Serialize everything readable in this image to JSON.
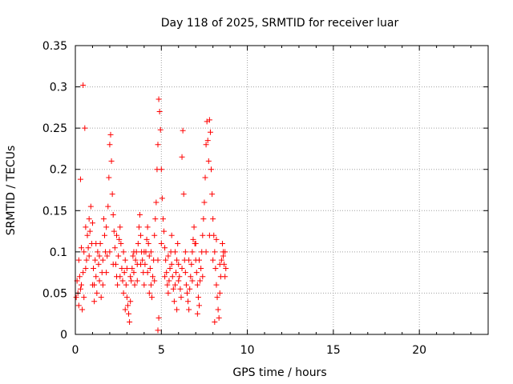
{
  "chart_data": {
    "type": "scatter",
    "title": "Day 118 of 2025, SRMTID for receiver luar",
    "xlabel": "GPS time / hours",
    "ylabel": "SRMTID / TECUs",
    "xlim": [
      0,
      24
    ],
    "ylim": [
      0,
      0.35
    ],
    "xticks": [
      0,
      5,
      10,
      15,
      20
    ],
    "xtick_labels": [
      "0",
      "5",
      "10",
      "15",
      "20"
    ],
    "yticks": [
      0,
      0.05,
      0.1,
      0.15,
      0.2,
      0.25,
      0.3,
      0.35
    ],
    "ytick_labels": [
      "0",
      "0.05",
      "0.1",
      "0.15",
      "0.2",
      "0.25",
      "0.3",
      "0.35"
    ],
    "grid": true,
    "marker": "plus",
    "color": "#ff0000",
    "series": [
      {
        "points": [
          [
            0.05,
            0.045
          ],
          [
            0.1,
            0.065
          ],
          [
            0.15,
            0.05
          ],
          [
            0.2,
            0.035
          ],
          [
            0.25,
            0.07
          ],
          [
            0.3,
            0.055
          ],
          [
            0.35,
            0.06
          ],
          [
            0.4,
            0.03
          ],
          [
            0.45,
            0.075
          ],
          [
            0.5,
            0.045
          ],
          [
            0.3,
            0.188
          ],
          [
            0.45,
            0.302
          ],
          [
            0.55,
            0.25
          ],
          [
            0.5,
            0.1
          ],
          [
            0.6,
            0.13
          ],
          [
            0.65,
            0.09
          ],
          [
            0.7,
            0.12
          ],
          [
            0.75,
            0.105
          ],
          [
            0.8,
            0.14
          ],
          [
            0.85,
            0.125
          ],
          [
            0.9,
            0.155
          ],
          [
            0.95,
            0.11
          ],
          [
            1.0,
            0.135
          ],
          [
            1.05,
            0.08
          ],
          [
            1.1,
            0.06
          ],
          [
            1.15,
            0.09
          ],
          [
            1.2,
            0.07
          ],
          [
            1.25,
            0.05
          ],
          [
            1.3,
            0.1
          ],
          [
            1.35,
            0.085
          ],
          [
            1.4,
            0.065
          ],
          [
            1.45,
            0.11
          ],
          [
            1.5,
            0.045
          ],
          [
            1.55,
            0.075
          ],
          [
            1.6,
            0.09
          ],
          [
            1.65,
            0.14
          ],
          [
            1.7,
            0.12
          ],
          [
            1.75,
            0.1
          ],
          [
            1.8,
            0.13
          ],
          [
            1.85,
            0.095
          ],
          [
            1.9,
            0.155
          ],
          [
            1.95,
            0.19
          ],
          [
            2.0,
            0.23
          ],
          [
            2.05,
            0.242
          ],
          [
            2.1,
            0.21
          ],
          [
            2.15,
            0.17
          ],
          [
            2.2,
            0.145
          ],
          [
            2.25,
            0.125
          ],
          [
            2.3,
            0.105
          ],
          [
            2.35,
            0.085
          ],
          [
            2.4,
            0.07
          ],
          [
            2.45,
            0.06
          ],
          [
            2.5,
            0.095
          ],
          [
            2.55,
            0.115
          ],
          [
            2.6,
            0.13
          ],
          [
            2.65,
            0.11
          ],
          [
            2.7,
            0.08
          ],
          [
            2.75,
            0.065
          ],
          [
            2.8,
            0.05
          ],
          [
            2.85,
            0.075
          ],
          [
            2.9,
            0.09
          ],
          [
            2.95,
            0.06
          ],
          [
            3.0,
            0.045
          ],
          [
            3.05,
            0.035
          ],
          [
            3.1,
            0.025
          ],
          [
            3.15,
            0.015
          ],
          [
            3.2,
            0.04
          ],
          [
            3.25,
            0.065
          ],
          [
            3.3,
            0.08
          ],
          [
            3.35,
            0.095
          ],
          [
            3.4,
            0.075
          ],
          [
            3.45,
            0.06
          ],
          [
            3.5,
            0.09
          ],
          [
            3.55,
            0.1
          ],
          [
            3.6,
            0.085
          ],
          [
            3.65,
            0.11
          ],
          [
            3.7,
            0.13
          ],
          [
            3.75,
            0.145
          ],
          [
            3.8,
            0.12
          ],
          [
            3.85,
            0.1
          ],
          [
            3.9,
            0.09
          ],
          [
            3.95,
            0.075
          ],
          [
            4.0,
            0.06
          ],
          [
            4.05,
            0.085
          ],
          [
            4.1,
            0.1
          ],
          [
            4.15,
            0.115
          ],
          [
            4.2,
            0.13
          ],
          [
            4.25,
            0.11
          ],
          [
            4.3,
            0.095
          ],
          [
            4.35,
            0.08
          ],
          [
            4.4,
            0.06
          ],
          [
            4.45,
            0.045
          ],
          [
            4.5,
            0.07
          ],
          [
            4.55,
            0.09
          ],
          [
            4.6,
            0.12
          ],
          [
            4.65,
            0.14
          ],
          [
            4.7,
            0.16
          ],
          [
            4.75,
            0.2
          ],
          [
            4.8,
            0.23
          ],
          [
            4.85,
            0.285
          ],
          [
            4.9,
            0.27
          ],
          [
            4.95,
            0.248
          ],
          [
            4.8,
            0.005
          ],
          [
            4.85,
            0.02
          ],
          [
            5.0,
            0.2
          ],
          [
            5.05,
            0.165
          ],
          [
            5.1,
            0.14
          ],
          [
            5.15,
            0.125
          ],
          [
            5.2,
            0.105
          ],
          [
            5.25,
            0.09
          ],
          [
            5.3,
            0.075
          ],
          [
            5.35,
            0.06
          ],
          [
            5.4,
            0.05
          ],
          [
            5.45,
            0.065
          ],
          [
            5.5,
            0.08
          ],
          [
            5.55,
            0.1
          ],
          [
            5.6,
            0.085
          ],
          [
            5.65,
            0.07
          ],
          [
            5.7,
            0.055
          ],
          [
            5.75,
            0.04
          ],
          [
            5.8,
            0.06
          ],
          [
            5.85,
            0.075
          ],
          [
            5.9,
            0.09
          ],
          [
            5.95,
            0.11
          ],
          [
            6.0,
            0.085
          ],
          [
            6.05,
            0.07
          ],
          [
            6.1,
            0.055
          ],
          [
            6.15,
            0.045
          ],
          [
            6.2,
            0.215
          ],
          [
            6.25,
            0.247
          ],
          [
            6.3,
            0.17
          ],
          [
            6.35,
            0.09
          ],
          [
            6.4,
            0.075
          ],
          [
            6.45,
            0.06
          ],
          [
            6.5,
            0.05
          ],
          [
            6.55,
            0.04
          ],
          [
            6.6,
            0.03
          ],
          [
            6.65,
            0.055
          ],
          [
            6.7,
            0.07
          ],
          [
            6.75,
            0.085
          ],
          [
            6.8,
            0.1
          ],
          [
            6.85,
            0.115
          ],
          [
            6.9,
            0.13
          ],
          [
            6.95,
            0.11
          ],
          [
            7.0,
            0.09
          ],
          [
            7.05,
            0.075
          ],
          [
            7.1,
            0.06
          ],
          [
            7.15,
            0.045
          ],
          [
            7.2,
            0.035
          ],
          [
            7.25,
            0.065
          ],
          [
            7.3,
            0.08
          ],
          [
            7.35,
            0.1
          ],
          [
            7.4,
            0.12
          ],
          [
            7.45,
            0.14
          ],
          [
            7.5,
            0.16
          ],
          [
            7.55,
            0.19
          ],
          [
            7.6,
            0.23
          ],
          [
            7.65,
            0.258
          ],
          [
            7.7,
            0.235
          ],
          [
            7.75,
            0.21
          ],
          [
            7.8,
            0.26
          ],
          [
            7.85,
            0.245
          ],
          [
            7.9,
            0.2
          ],
          [
            7.95,
            0.17
          ],
          [
            8.0,
            0.14
          ],
          [
            8.05,
            0.12
          ],
          [
            8.1,
            0.1
          ],
          [
            8.15,
            0.08
          ],
          [
            8.2,
            0.06
          ],
          [
            8.25,
            0.045
          ],
          [
            8.3,
            0.03
          ],
          [
            8.35,
            0.02
          ],
          [
            8.4,
            0.05
          ],
          [
            8.45,
            0.07
          ],
          [
            8.5,
            0.09
          ],
          [
            8.55,
            0.11
          ],
          [
            8.6,
            0.1
          ],
          [
            8.65,
            0.085
          ],
          [
            8.7,
            0.07
          ],
          [
            8.75,
            0.08
          ],
          [
            0.2,
            0.09
          ],
          [
            0.35,
            0.105
          ],
          [
            0.6,
            0.08
          ],
          [
            0.8,
            0.095
          ],
          [
            1.0,
            0.06
          ],
          [
            1.2,
            0.11
          ],
          [
            1.4,
            0.095
          ],
          [
            1.6,
            0.06
          ],
          [
            1.8,
            0.075
          ],
          [
            2.0,
            0.1
          ],
          [
            2.2,
            0.085
          ],
          [
            2.4,
            0.12
          ],
          [
            2.6,
            0.07
          ],
          [
            2.8,
            0.1
          ],
          [
            3.0,
            0.08
          ],
          [
            3.2,
            0.07
          ],
          [
            3.4,
            0.1
          ],
          [
            3.6,
            0.065
          ],
          [
            3.8,
            0.085
          ],
          [
            4.0,
            0.1
          ],
          [
            4.2,
            0.075
          ],
          [
            4.4,
            0.1
          ],
          [
            4.6,
            0.065
          ],
          [
            4.8,
            0.09
          ],
          [
            5.0,
            0.11
          ],
          [
            5.2,
            0.07
          ],
          [
            5.4,
            0.095
          ],
          [
            5.6,
            0.12
          ],
          [
            5.8,
            0.1
          ],
          [
            6.0,
            0.065
          ],
          [
            6.2,
            0.08
          ],
          [
            6.4,
            0.1
          ],
          [
            6.6,
            0.09
          ],
          [
            6.8,
            0.065
          ],
          [
            7.0,
            0.11
          ],
          [
            7.2,
            0.09
          ],
          [
            7.4,
            0.07
          ],
          [
            7.6,
            0.1
          ],
          [
            7.8,
            0.12
          ],
          [
            8.0,
            0.09
          ],
          [
            8.2,
            0.115
          ],
          [
            8.4,
            0.085
          ],
          [
            8.6,
            0.095
          ],
          [
            8.7,
            0.1
          ],
          [
            1.1,
            0.04
          ],
          [
            2.9,
            0.03
          ],
          [
            4.3,
            0.05
          ],
          [
            5.9,
            0.03
          ],
          [
            7.1,
            0.025
          ],
          [
            8.1,
            0.015
          ]
        ]
      }
    ]
  }
}
